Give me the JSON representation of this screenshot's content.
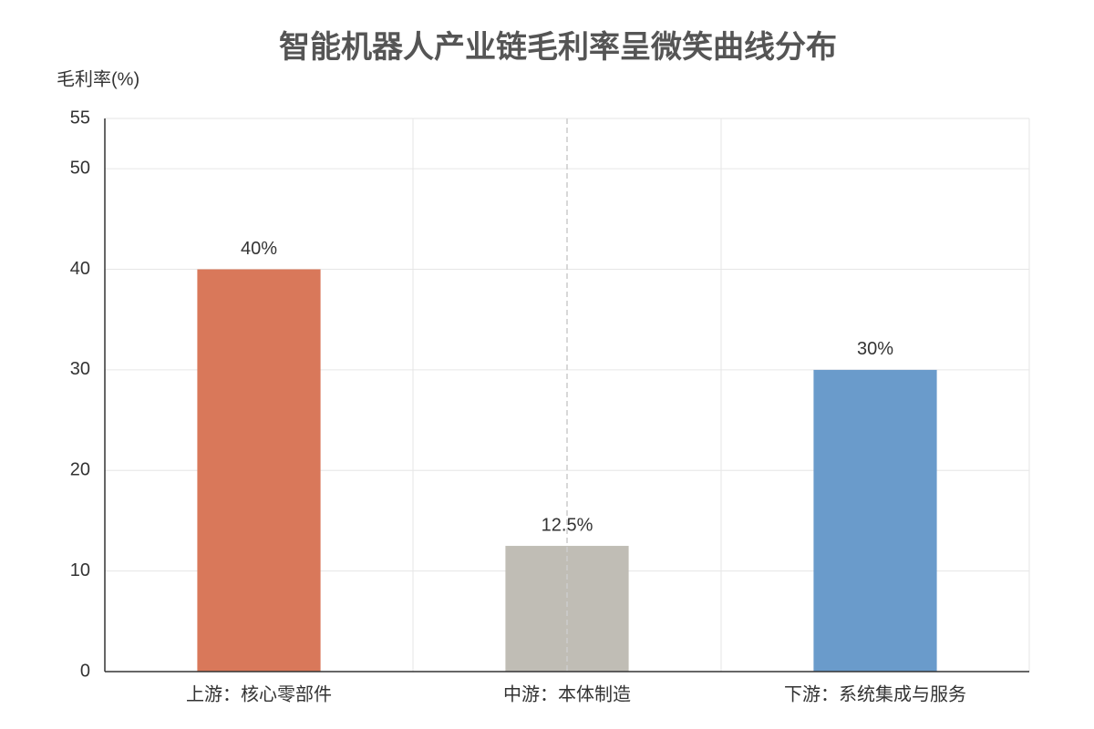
{
  "chart_data": {
    "type": "bar",
    "title": "智能机器人产业链毛利率呈微笑曲线分布",
    "y_label": "毛利率(%)",
    "categories": [
      "上游：核心零部件",
      "中游：本体制造",
      "下游：系统集成与服务"
    ],
    "values": [
      40,
      12.5,
      30
    ],
    "value_labels": [
      "40%",
      "12.5%",
      "30%"
    ],
    "colors": [
      "#d9785a",
      "#c0bdb5",
      "#6a9bcb"
    ],
    "ylim": [
      0,
      55
    ],
    "yticks": [
      0,
      10,
      20,
      30,
      40,
      50,
      55
    ],
    "grid": true
  }
}
